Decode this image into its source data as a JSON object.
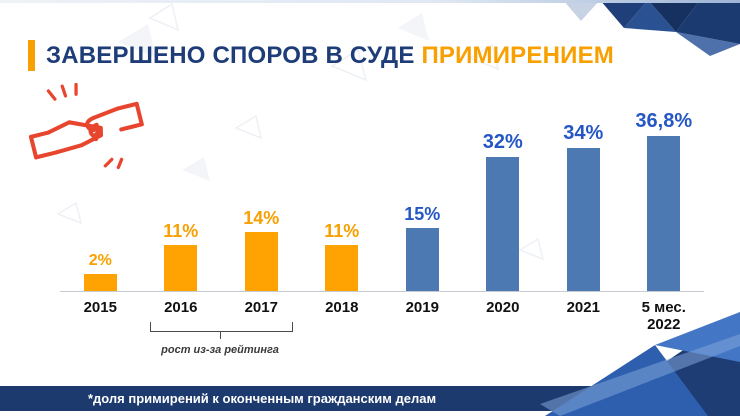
{
  "slide": {
    "title_main": "ЗАВЕРШЕНО СПОРОВ В СУДЕ",
    "title_accent": "ПРИМИРЕНИЕМ",
    "annotation": "рост из-за рейтинга",
    "footer_note": "*доля примирений к оконченным гражданским делам"
  },
  "colors": {
    "title_navy": "#1e3c78",
    "accent_orange": "#f7a000",
    "bar_orange": "#ffa302",
    "bar_blue": "#4d79b3",
    "label_blue": "#2456c6",
    "footer_navy": "#1c3a6d",
    "handshake_red": "#e8452f"
  },
  "icons": {
    "handshake": "handshake-icon"
  },
  "chart_data": {
    "type": "bar",
    "title": "ЗАВЕРШЕНО СПОРОВ В СУДЕ ПРИМИРЕНИЕМ",
    "unit": "%",
    "categories": [
      "2015",
      "2016",
      "2017",
      "2018",
      "2019",
      "2020",
      "2021",
      "5 мес.\n2022"
    ],
    "values": [
      2,
      11,
      14,
      11,
      15,
      32,
      34,
      36.8
    ],
    "labels": [
      "2%",
      "11%",
      "14%",
      "11%",
      "15%",
      "32%",
      "34%",
      "36,8%"
    ],
    "colors": [
      "orange",
      "orange",
      "orange",
      "orange",
      "blue",
      "blue",
      "blue",
      "blue"
    ],
    "ylim": [
      0,
      40
    ],
    "grid": false,
    "legend": "none",
    "annotation": {
      "text": "рост из-за рейтинга",
      "categories": [
        "2016",
        "2017"
      ]
    }
  }
}
